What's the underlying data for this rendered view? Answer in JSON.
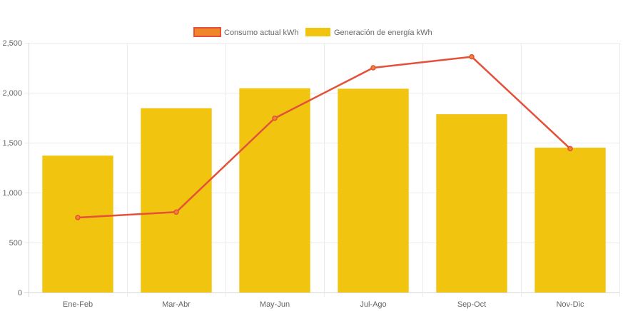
{
  "chart_data": {
    "type": "bar",
    "categories": [
      "Ene-Feb",
      "Mar-Abr",
      "May-Jun",
      "Jul-Ago",
      "Sep-Oct",
      "Nov-Dic"
    ],
    "ylim": [
      0,
      2500
    ],
    "yticks": [
      0,
      500,
      1000,
      1500,
      2000,
      2500
    ],
    "ytick_labels": [
      "0",
      "500",
      "1,000",
      "1,500",
      "2,000",
      "2,500"
    ],
    "grid": true,
    "legend_position": "top-center",
    "series": [
      {
        "name": "Consumo actual kWh",
        "type": "line",
        "color": "#e4503a",
        "legend_fill": "#f0862a",
        "values": [
          750,
          805,
          1745,
          2250,
          2360,
          1440
        ]
      },
      {
        "name": "Generación de energía kWh",
        "type": "bar",
        "color": "#f1c40f",
        "values": [
          1370,
          1845,
          2045,
          2040,
          1785,
          1450
        ]
      }
    ]
  }
}
